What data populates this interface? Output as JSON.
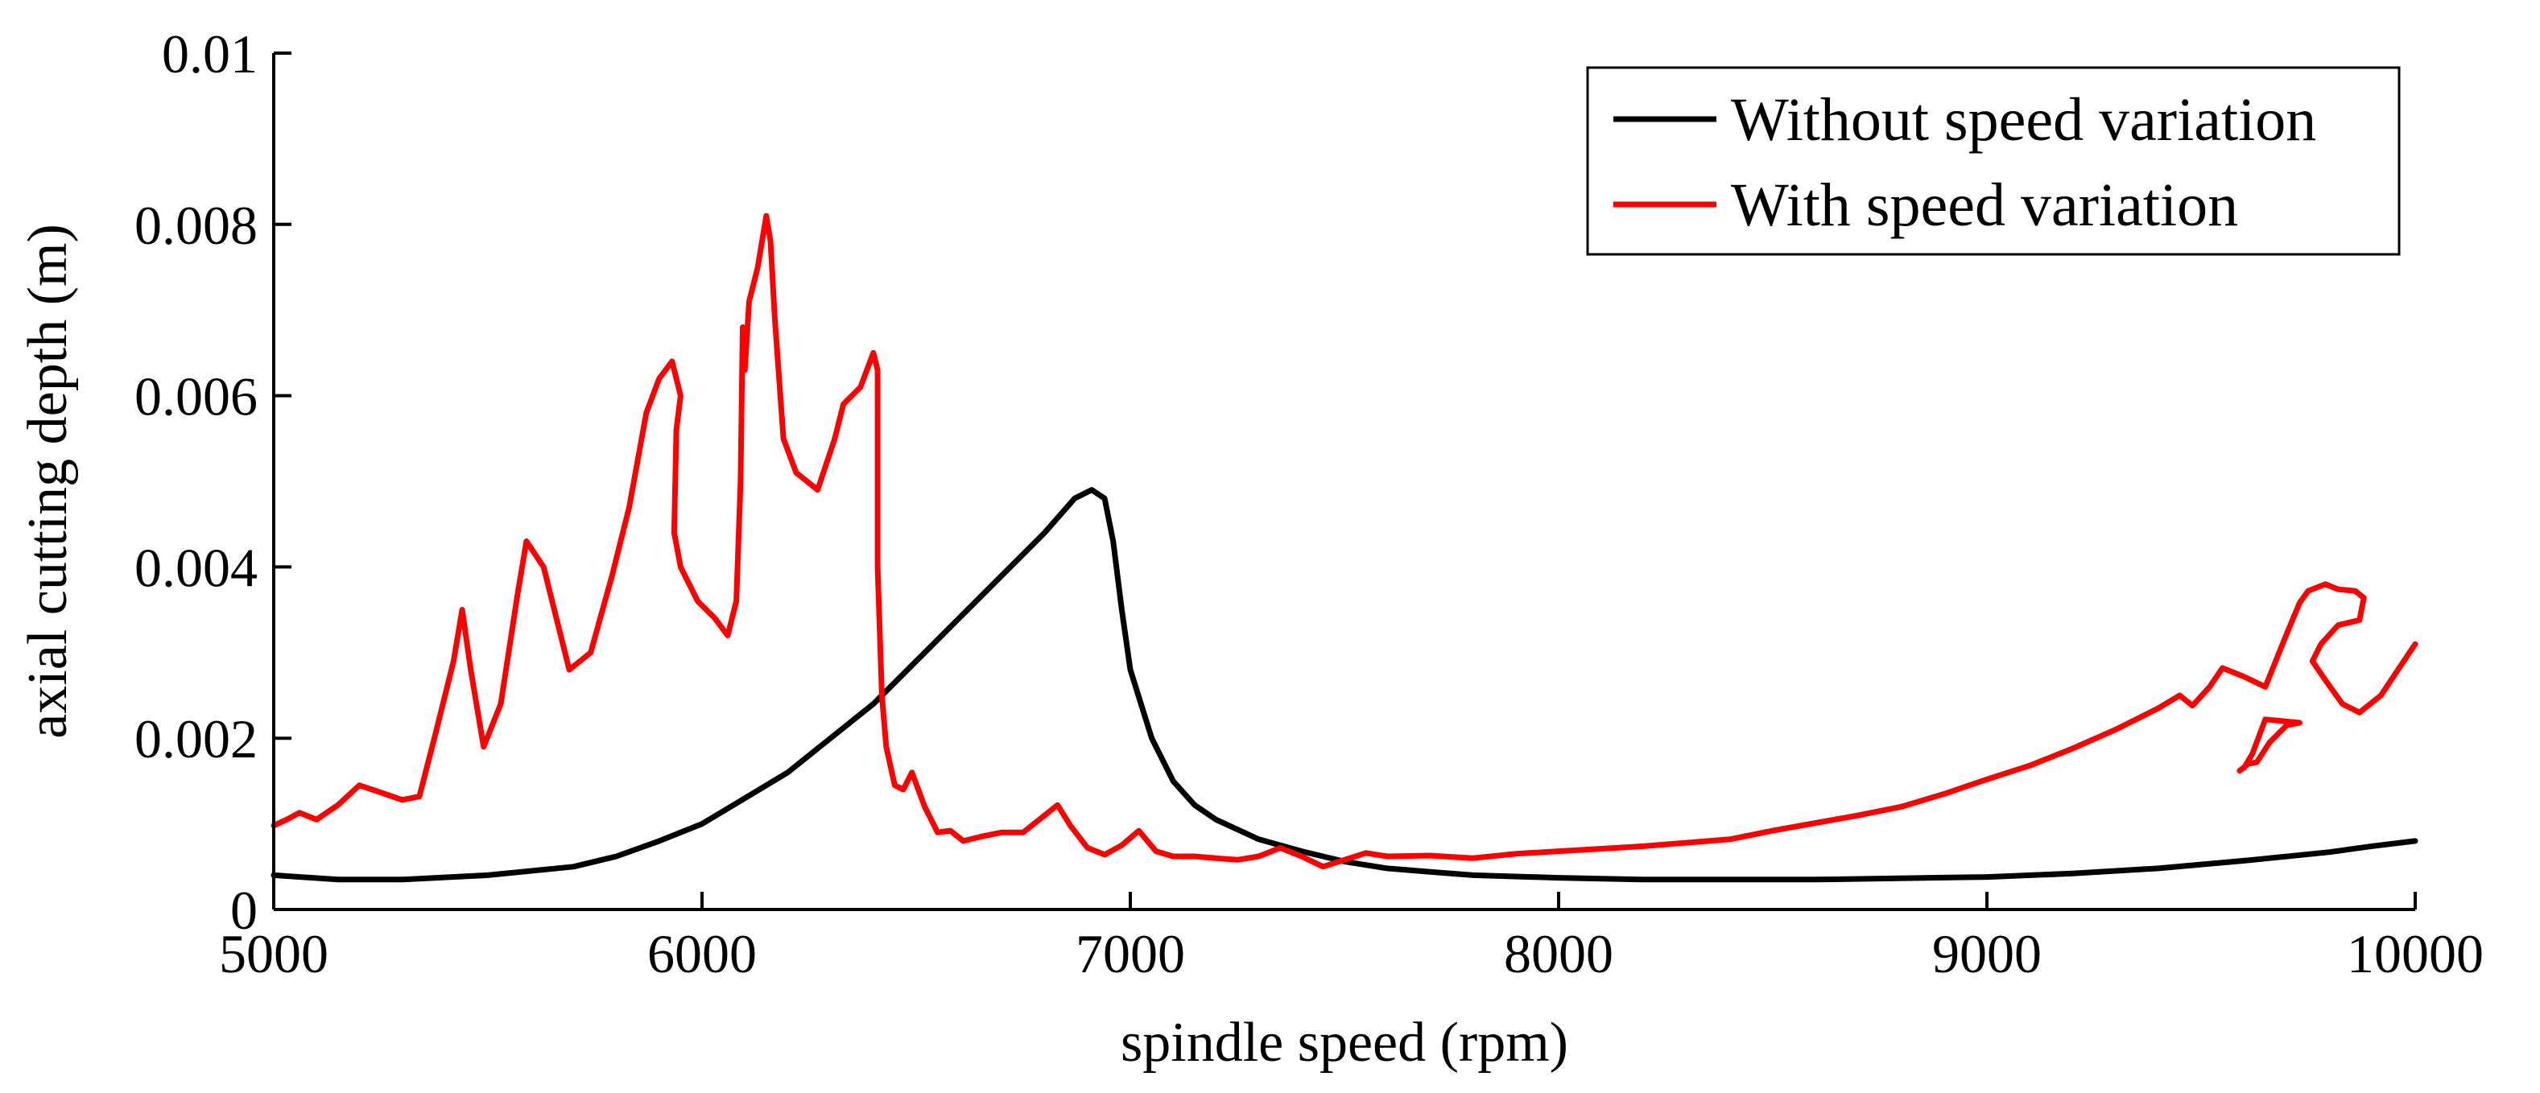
{
  "chart_data": {
    "type": "line",
    "title": "",
    "xlabel": "spindle speed (rpm)",
    "ylabel": "axial cutting depth (m)",
    "xlim": [
      5000,
      10000
    ],
    "ylim": [
      0,
      0.01
    ],
    "x_ticks": [
      5000,
      6000,
      7000,
      8000,
      9000,
      10000
    ],
    "x_tick_labels": [
      "5000",
      "6000",
      "7000",
      "8000",
      "9000",
      "10000"
    ],
    "y_ticks": [
      0,
      0.002,
      0.004,
      0.006,
      0.008,
      0.01
    ],
    "y_tick_labels": [
      "0",
      "0.002",
      "0.004",
      "0.006",
      "0.008",
      "0.01"
    ],
    "grid": false,
    "legend_position": "top-right",
    "series": [
      {
        "name": "Without speed variation",
        "color": "#000000",
        "points": [
          [
            5000,
            0.0004
          ],
          [
            5150,
            0.00035
          ],
          [
            5300,
            0.00035
          ],
          [
            5500,
            0.0004
          ],
          [
            5700,
            0.0005
          ],
          [
            5800,
            0.00062
          ],
          [
            5900,
            0.0008
          ],
          [
            6000,
            0.001
          ],
          [
            6100,
            0.0013
          ],
          [
            6200,
            0.0016
          ],
          [
            6300,
            0.002
          ],
          [
            6400,
            0.0024
          ],
          [
            6500,
            0.0029
          ],
          [
            6600,
            0.0034
          ],
          [
            6700,
            0.0039
          ],
          [
            6800,
            0.0044
          ],
          [
            6870,
            0.0048
          ],
          [
            6910,
            0.0049
          ],
          [
            6940,
            0.0048
          ],
          [
            6960,
            0.0043
          ],
          [
            6980,
            0.0035
          ],
          [
            7000,
            0.0028
          ],
          [
            7050,
            0.002
          ],
          [
            7100,
            0.0015
          ],
          [
            7150,
            0.00122
          ],
          [
            7200,
            0.00105
          ],
          [
            7300,
            0.00082
          ],
          [
            7400,
            0.00068
          ],
          [
            7500,
            0.00056
          ],
          [
            7600,
            0.00048
          ],
          [
            7700,
            0.00044
          ],
          [
            7800,
            0.0004
          ],
          [
            8000,
            0.00037
          ],
          [
            8200,
            0.00035
          ],
          [
            8600,
            0.00035
          ],
          [
            9000,
            0.00038
          ],
          [
            9200,
            0.00042
          ],
          [
            9400,
            0.00048
          ],
          [
            9600,
            0.00057
          ],
          [
            9800,
            0.00067
          ],
          [
            9900,
            0.00074
          ],
          [
            10000,
            0.0008
          ]
        ]
      },
      {
        "name": "With speed variation",
        "color": "#ff0000",
        "points": [
          [
            5000,
            0.00098
          ],
          [
            5030,
            0.00105
          ],
          [
            5060,
            0.00113
          ],
          [
            5100,
            0.00105
          ],
          [
            5150,
            0.00122
          ],
          [
            5200,
            0.00145
          ],
          [
            5260,
            0.00135
          ],
          [
            5300,
            0.00128
          ],
          [
            5340,
            0.00132
          ],
          [
            5380,
            0.0021
          ],
          [
            5420,
            0.0029
          ],
          [
            5440,
            0.0035
          ],
          [
            5460,
            0.0028
          ],
          [
            5490,
            0.0019
          ],
          [
            5530,
            0.0024
          ],
          [
            5570,
            0.0037
          ],
          [
            5590,
            0.0043
          ],
          [
            5630,
            0.004
          ],
          [
            5660,
            0.0034
          ],
          [
            5690,
            0.0028
          ],
          [
            5740,
            0.003
          ],
          [
            5790,
            0.0039
          ],
          [
            5830,
            0.0047
          ],
          [
            5870,
            0.0058
          ],
          [
            5900,
            0.0062
          ],
          [
            5930,
            0.0064
          ],
          [
            5950,
            0.006
          ],
          [
            5940,
            0.0056
          ],
          [
            5935,
            0.0044
          ],
          [
            5950,
            0.004
          ],
          [
            5990,
            0.0036
          ],
          [
            6030,
            0.0034
          ],
          [
            6060,
            0.0032
          ],
          [
            6080,
            0.0036
          ],
          [
            6090,
            0.005
          ],
          [
            6095,
            0.0068
          ],
          [
            6100,
            0.0063
          ],
          [
            6110,
            0.0071
          ],
          [
            6130,
            0.0075
          ],
          [
            6150,
            0.0081
          ],
          [
            6160,
            0.0078
          ],
          [
            6170,
            0.0069
          ],
          [
            6190,
            0.0055
          ],
          [
            6220,
            0.0051
          ],
          [
            6270,
            0.0049
          ],
          [
            6310,
            0.0055
          ],
          [
            6330,
            0.0059
          ],
          [
            6370,
            0.0061
          ],
          [
            6400,
            0.0065
          ],
          [
            6410,
            0.0063
          ],
          [
            6410,
            0.004
          ],
          [
            6420,
            0.0025
          ],
          [
            6430,
            0.0019
          ],
          [
            6450,
            0.00145
          ],
          [
            6470,
            0.0014
          ],
          [
            6490,
            0.0016
          ],
          [
            6520,
            0.0012
          ],
          [
            6550,
            0.0009
          ],
          [
            6580,
            0.00092
          ],
          [
            6610,
            0.0008
          ],
          [
            6650,
            0.00085
          ],
          [
            6700,
            0.0009
          ],
          [
            6750,
            0.0009
          ],
          [
            6800,
            0.0011
          ],
          [
            6830,
            0.00122
          ],
          [
            6860,
            0.00098
          ],
          [
            6900,
            0.00072
          ],
          [
            6940,
            0.00064
          ],
          [
            6980,
            0.00075
          ],
          [
            7020,
            0.00092
          ],
          [
            7060,
            0.00068
          ],
          [
            7100,
            0.00062
          ],
          [
            7150,
            0.00062
          ],
          [
            7200,
            0.0006
          ],
          [
            7250,
            0.00058
          ],
          [
            7300,
            0.00062
          ],
          [
            7350,
            0.00072
          ],
          [
            7400,
            0.00062
          ],
          [
            7450,
            0.0005
          ],
          [
            7500,
            0.00058
          ],
          [
            7550,
            0.00066
          ],
          [
            7600,
            0.00062
          ],
          [
            7700,
            0.00063
          ],
          [
            7800,
            0.0006
          ],
          [
            7900,
            0.00065
          ],
          [
            8000,
            0.00068
          ],
          [
            8100,
            0.00071
          ],
          [
            8200,
            0.00074
          ],
          [
            8300,
            0.00078
          ],
          [
            8400,
            0.00082
          ],
          [
            8500,
            0.00092
          ],
          [
            8600,
            0.00101
          ],
          [
            8700,
            0.0011
          ],
          [
            8800,
            0.0012
          ],
          [
            8900,
            0.00135
          ],
          [
            9000,
            0.00152
          ],
          [
            9100,
            0.00168
          ],
          [
            9200,
            0.00188
          ],
          [
            9300,
            0.0021
          ],
          [
            9400,
            0.00235
          ],
          [
            9450,
            0.0025
          ],
          [
            9480,
            0.00238
          ],
          [
            9520,
            0.0026
          ],
          [
            9550,
            0.00282
          ],
          [
            9600,
            0.00272
          ],
          [
            9650,
            0.0026
          ],
          [
            9700,
            0.00322
          ],
          [
            9730,
            0.00358
          ],
          [
            9750,
            0.00372
          ],
          [
            9790,
            0.0038
          ],
          [
            9820,
            0.00374
          ],
          [
            9860,
            0.00372
          ],
          [
            9880,
            0.00364
          ],
          [
            9870,
            0.00338
          ],
          [
            9820,
            0.00332
          ],
          [
            9780,
            0.0031
          ],
          [
            9760,
            0.0029
          ],
          [
            9790,
            0.00268
          ],
          [
            9830,
            0.0024
          ],
          [
            9870,
            0.0023
          ],
          [
            9920,
            0.0025
          ],
          [
            9960,
            0.0028
          ],
          [
            10000,
            0.0031
          ]
        ]
      },
      {
        "name": "",
        "color": "#ff0000",
        "points": [
          [
            9590,
            0.00162
          ],
          [
            9610,
            0.0017
          ],
          [
            9630,
            0.00172
          ],
          [
            9660,
            0.00195
          ],
          [
            9700,
            0.00215
          ],
          [
            9730,
            0.00218
          ],
          [
            9690,
            0.0022
          ],
          [
            9650,
            0.00222
          ],
          [
            9620,
            0.00182
          ],
          [
            9600,
            0.00165
          ]
        ]
      }
    ]
  }
}
